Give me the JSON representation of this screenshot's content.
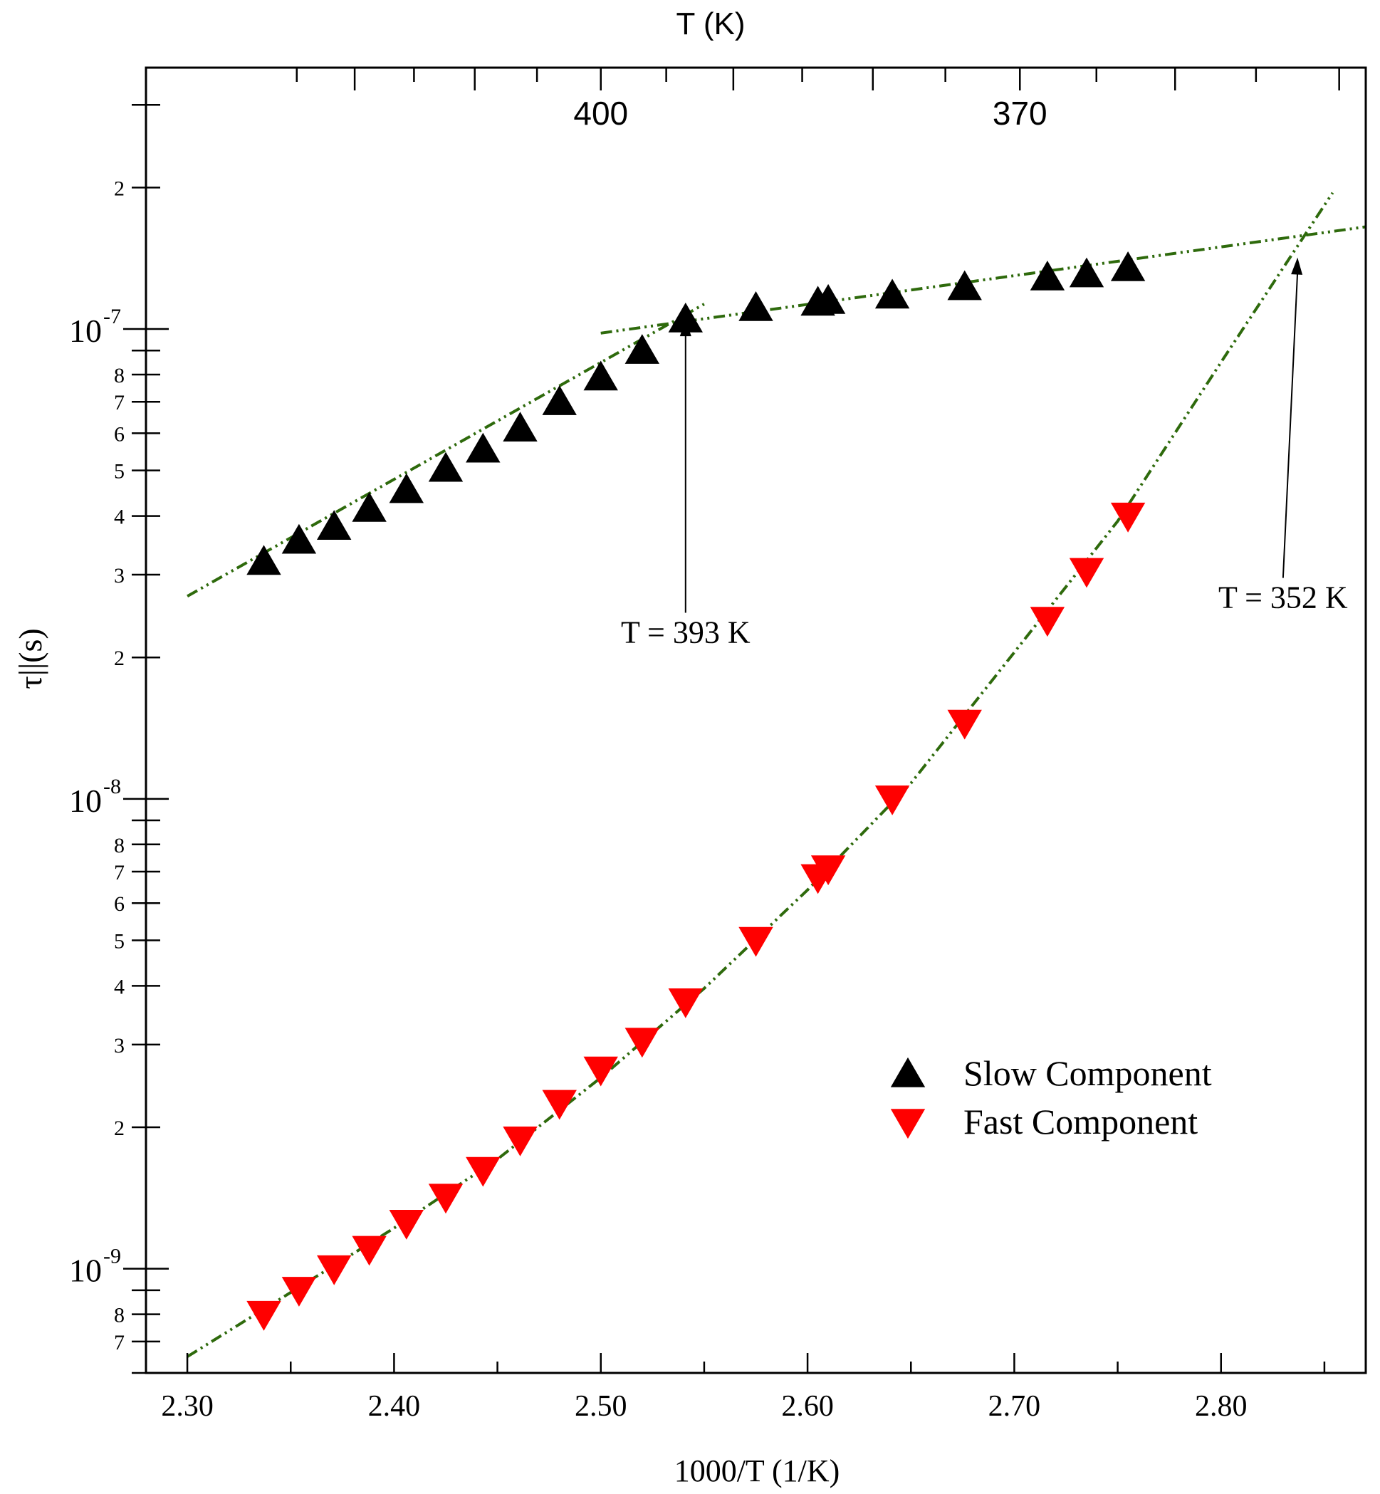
{
  "chart_data": {
    "type": "scatter",
    "title": "",
    "xlabel": "1000/T (1/K)",
    "ylabel": "τ||(s)",
    "top_axis_label": "T (K)",
    "xlim": [
      2.28,
      2.87
    ],
    "ylim": [
      6e-10,
      3.6e-07
    ],
    "y_scale": "log",
    "grid": false,
    "legend_position": "lower-right",
    "x_ticks": [
      2.3,
      2.4,
      2.5,
      2.6,
      2.7,
      2.8
    ],
    "x_tick_labels": [
      "2.30",
      "2.40",
      "2.50",
      "2.60",
      "2.70",
      "2.80"
    ],
    "top_ticks": [
      400,
      370
    ],
    "top_tick_labels": [
      "400",
      "370"
    ],
    "y_decades": [
      {
        "value": 1e-09,
        "base": "10",
        "exp": "-9"
      },
      {
        "value": 1e-08,
        "base": "10",
        "exp": "-8"
      },
      {
        "value": 1e-07,
        "base": "10",
        "exp": "-7"
      }
    ],
    "y_minor_labels": [
      {
        "value": 7e-10,
        "label": "7"
      },
      {
        "value": 8e-10,
        "label": "8"
      },
      {
        "value": 2e-09,
        "label": "2"
      },
      {
        "value": 3e-09,
        "label": "3"
      },
      {
        "value": 4e-09,
        "label": "4"
      },
      {
        "value": 5e-09,
        "label": "5"
      },
      {
        "value": 6e-09,
        "label": "6"
      },
      {
        "value": 7e-09,
        "label": "7"
      },
      {
        "value": 8e-09,
        "label": "8"
      },
      {
        "value": 2e-08,
        "label": "2"
      },
      {
        "value": 3e-08,
        "label": "3"
      },
      {
        "value": 4e-08,
        "label": "4"
      },
      {
        "value": 5e-08,
        "label": "5"
      },
      {
        "value": 6e-08,
        "label": "6"
      },
      {
        "value": 7e-08,
        "label": "7"
      },
      {
        "value": 8e-08,
        "label": "8"
      },
      {
        "value": 2e-07,
        "label": "2"
      }
    ],
    "series": [
      {
        "name": "Slow Component",
        "marker": "triangle-up",
        "color": "#000000",
        "x": [
          2.337,
          2.354,
          2.371,
          2.388,
          2.406,
          2.425,
          2.443,
          2.461,
          2.48,
          2.5,
          2.52,
          2.541,
          2.575,
          2.605,
          2.61,
          2.641,
          2.676,
          2.716,
          2.735,
          2.755
        ],
        "y": [
          3.2e-08,
          3.55e-08,
          3.8e-08,
          4.15e-08,
          4.55e-08,
          5.05e-08,
          5.55e-08,
          6.15e-08,
          7e-08,
          7.9e-08,
          9e-08,
          1.05e-07,
          1.11e-07,
          1.14e-07,
          1.15e-07,
          1.18e-07,
          1.23e-07,
          1.29e-07,
          1.31e-07,
          1.35e-07
        ]
      },
      {
        "name": "Fast Component",
        "marker": "triangle-down",
        "color": "#ff0000",
        "x": [
          2.337,
          2.354,
          2.371,
          2.388,
          2.406,
          2.425,
          2.443,
          2.461,
          2.48,
          2.5,
          2.52,
          2.541,
          2.575,
          2.605,
          2.61,
          2.641,
          2.676,
          2.716,
          2.735,
          2.755
        ],
        "y": [
          8e-10,
          9e-10,
          1e-09,
          1.1e-09,
          1.25e-09,
          1.42e-09,
          1.62e-09,
          1.88e-09,
          2.25e-09,
          2.65e-09,
          3.05e-09,
          3.7e-09,
          5e-09,
          6.8e-09,
          7.1e-09,
          1e-08,
          1.45e-08,
          2.4e-08,
          3.05e-08,
          4e-08
        ]
      }
    ],
    "fits": [
      {
        "name": "slow-low-T-fit",
        "color": "#2e6a0c",
        "style": "dash-dot-dot",
        "x": [
          2.3,
          2.55
        ],
        "y": [
          2.7e-08,
          1.13e-07
        ]
      },
      {
        "name": "slow-high-T-fit",
        "color": "#2e6a0c",
        "style": "dash-dot-dot",
        "x": [
          2.5,
          2.87
        ],
        "y": [
          9.8e-08,
          1.65e-07
        ]
      },
      {
        "name": "fast-fit",
        "color": "#2e6a0c",
        "style": "dash-dot-dot",
        "x": [
          2.3,
          2.35,
          2.4,
          2.45,
          2.5,
          2.55,
          2.6,
          2.65,
          2.7,
          2.75,
          2.8,
          2.854
        ],
        "y": [
          6.5e-10,
          8.9e-10,
          1.22e-09,
          1.71e-09,
          2.55e-09,
          3.95e-09,
          6.4e-09,
          1.08e-08,
          2.05e-08,
          3.9e-08,
          8.5e-08,
          1.95e-07
        ]
      }
    ],
    "annotations": [
      {
        "name": "annotation-393",
        "text": "T = 393 K",
        "arrow_to": [
          2.541,
          1.05e-07
        ],
        "text_at": [
          2.541,
          2.15e-08
        ]
      },
      {
        "name": "annotation-352",
        "text": "T = 352 K",
        "arrow_to": [
          2.837,
          1.42e-07
        ],
        "text_at": [
          2.83,
          2.55e-08
        ]
      }
    ],
    "legend": [
      {
        "label": "Slow Component",
        "marker": "triangle-up",
        "color": "#000000"
      },
      {
        "label": "Fast Component",
        "marker": "triangle-down",
        "color": "#ff0000"
      }
    ]
  }
}
